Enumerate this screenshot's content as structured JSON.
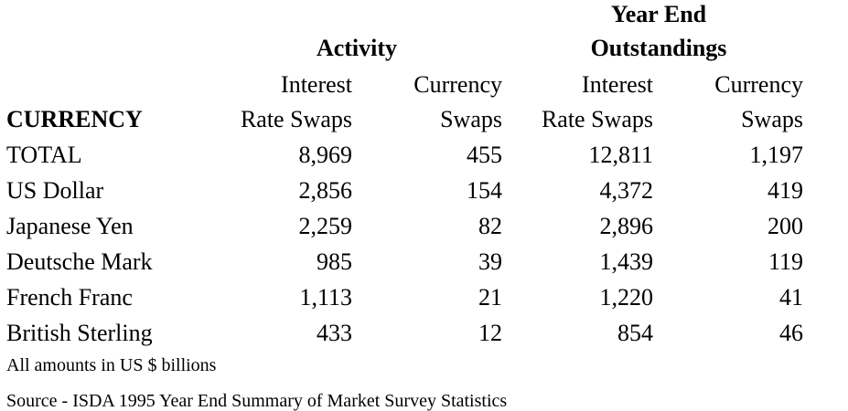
{
  "group_headers": {
    "activity": "Activity",
    "year_end_line1": "Year End",
    "year_end_line2": "Outstandings"
  },
  "columns": [
    {
      "line1": "Interest",
      "line2": "Rate Swaps"
    },
    {
      "line1": "Currency",
      "line2": "Swaps"
    },
    {
      "line1": "Interest",
      "line2": "Rate Swaps"
    },
    {
      "line1": "Currency",
      "line2": "Swaps"
    }
  ],
  "row_header_label": "CURRENCY",
  "rows": [
    {
      "currency": "TOTAL",
      "values": [
        "8,969",
        "455",
        "12,811",
        "1,197"
      ]
    },
    {
      "currency": "US Dollar",
      "values": [
        "2,856",
        "154",
        "4,372",
        "419"
      ]
    },
    {
      "currency": "Japanese Yen",
      "values": [
        "2,259",
        "82",
        "2,896",
        "200"
      ]
    },
    {
      "currency": "Deutsche Mark",
      "values": [
        "985",
        "39",
        "1,439",
        "119"
      ]
    },
    {
      "currency": "French Franc",
      "values": [
        "1,113",
        "21",
        "1,220",
        "41"
      ]
    },
    {
      "currency": "British Sterling",
      "values": [
        "433",
        "12",
        "854",
        "46"
      ]
    }
  ],
  "footnotes": {
    "units": "All amounts in US $ billions",
    "source": "Source - ISDA 1995 Year End Summary of Market Survey Statistics"
  }
}
